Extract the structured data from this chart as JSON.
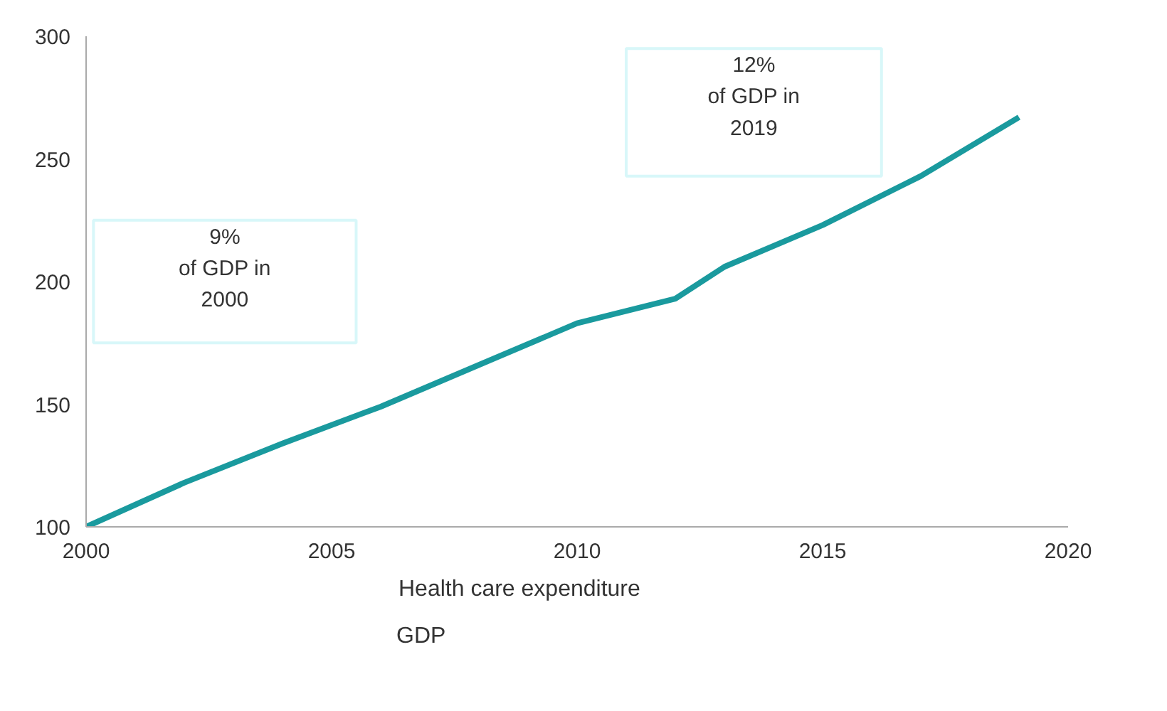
{
  "chart_data": {
    "type": "line",
    "x": [
      2000,
      2002,
      2004,
      2006,
      2008,
      2010,
      2012,
      2013,
      2015,
      2017,
      2019
    ],
    "series": [
      {
        "name": "Health care expenditure",
        "color": "#1a9a9e",
        "values": [
          100,
          118,
          134,
          149,
          166,
          183,
          193,
          206,
          223,
          243,
          267
        ]
      }
    ],
    "xlim": [
      2000,
      2020
    ],
    "xticks": [
      2000,
      2005,
      2010,
      2015,
      2020
    ],
    "ylim": [
      100,
      300
    ],
    "yticks": [
      100,
      150,
      200,
      250,
      300
    ],
    "grid": false,
    "legend": "bottom",
    "line_style": "solid",
    "annotations": [
      "9%\nof GDP in\n2000",
      "12%\nof GDP in\n2019",
      "GDP"
    ]
  }
}
